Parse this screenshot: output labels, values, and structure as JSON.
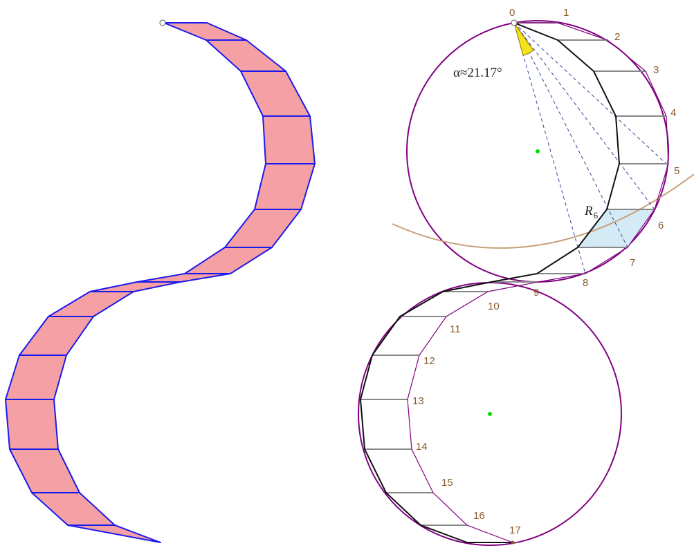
{
  "annotations": {
    "angle_label": "α≈21.17°",
    "radius_label": "R",
    "radius_subscript": "6"
  },
  "point_labels": [
    "0",
    "1",
    "2",
    "3",
    "4",
    "5",
    "6",
    "7",
    "8",
    "9",
    "10",
    "11",
    "12",
    "13",
    "14",
    "15",
    "16",
    "17"
  ],
  "colors": {
    "strip_fill": "#f4a0a4",
    "strip_edge": "#1a1aee",
    "circle": "#800080",
    "inner_chain": "#111111",
    "rungs": "#888888",
    "label": "#8b5a2b",
    "arc": "#c8a07a",
    "dashed": "#334499",
    "angle_fill": "#f4e21a",
    "highlight": "#d4eaf5",
    "center": "#00dd00"
  }
}
